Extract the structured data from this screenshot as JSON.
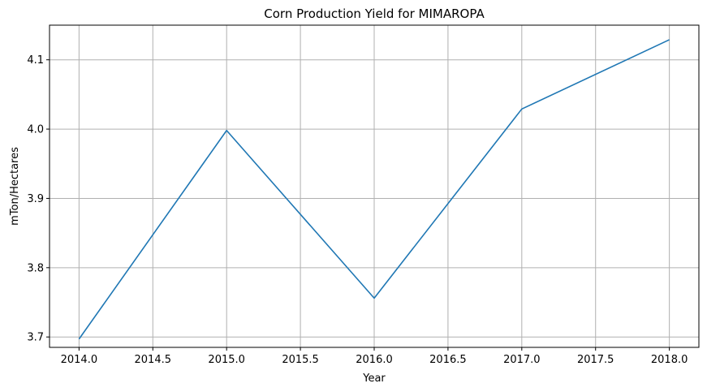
{
  "chart_data": {
    "type": "line",
    "title": "Corn Production Yield for MIMAROPA",
    "xlabel": "Year",
    "ylabel": "mTon/Hectares",
    "x": [
      2014,
      2015,
      2016,
      2017,
      2018
    ],
    "series": [
      {
        "values": [
          3.697,
          3.998,
          3.756,
          4.029,
          4.129
        ],
        "color": "#1f77b4"
      }
    ],
    "xlim": [
      2013.8,
      2018.2
    ],
    "ylim": [
      3.685,
      4.15
    ],
    "xticks": [
      2014.0,
      2014.5,
      2015.0,
      2015.5,
      2016.0,
      2016.5,
      2017.0,
      2017.5,
      2018.0
    ],
    "xtick_labels": [
      "2014.0",
      "2014.5",
      "2015.0",
      "2015.5",
      "2016.0",
      "2016.5",
      "2017.0",
      "2017.5",
      "2018.0"
    ],
    "yticks": [
      3.7,
      3.8,
      3.9,
      4.0,
      4.1
    ],
    "ytick_labels": [
      "3.7",
      "3.8",
      "3.9",
      "4.0",
      "4.1"
    ],
    "grid": true,
    "grid_color": "#b0b0b0"
  }
}
